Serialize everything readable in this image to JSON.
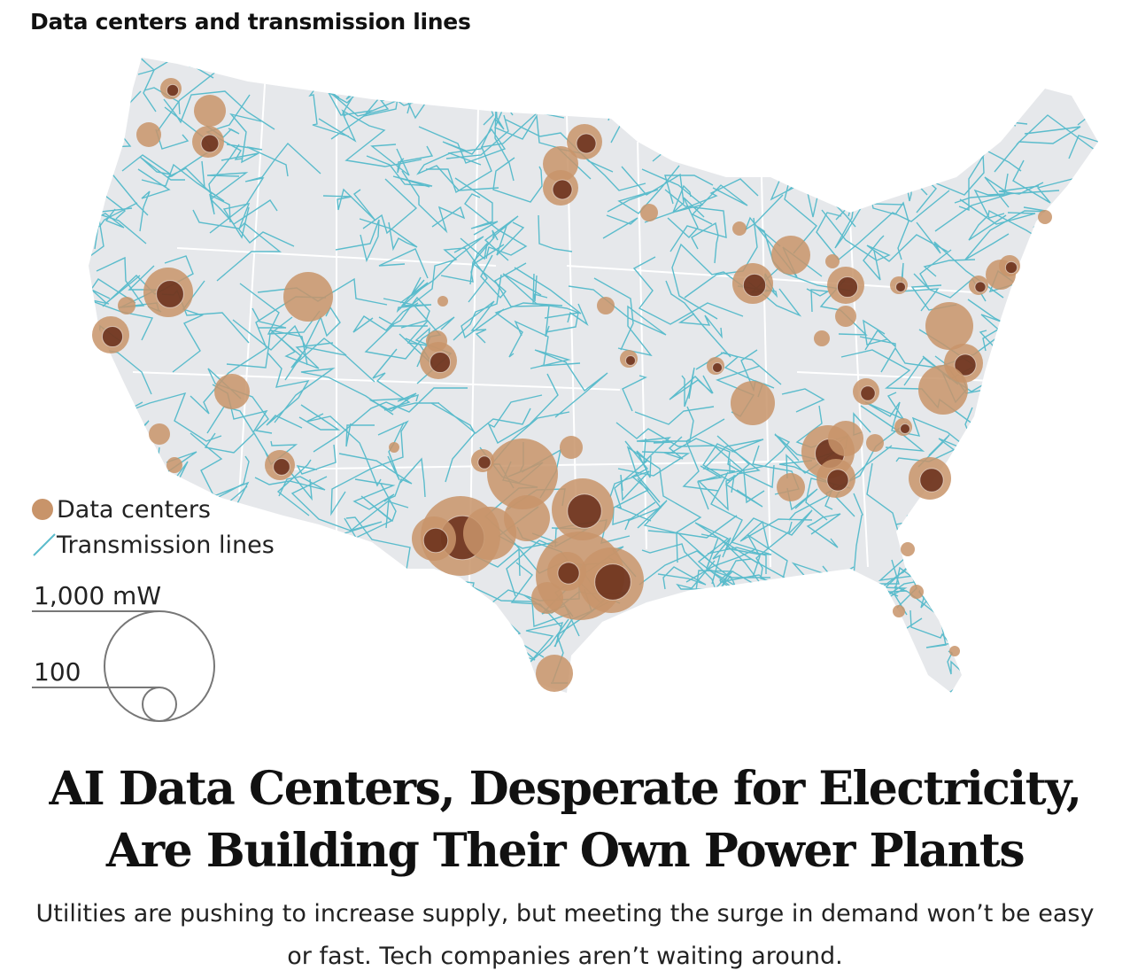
{
  "chart_title": "Data centers and transmission lines",
  "legend": {
    "data_centers": "Data centers",
    "transmission_lines": "Transmission lines",
    "scale_large": "1,000 mW",
    "scale_small": "100"
  },
  "colors": {
    "data_center": "#c8946a",
    "data_center_dark": "#5a1e0c",
    "transmission": "#5bbccc",
    "land": "#e6e8eb"
  },
  "headline": "AI Data Centers, Desperate for Electricity, Are Building Their Own Power Plants",
  "dek": "Utilities are pushing to increase supply, but meeting the surge in demand won’t be easy or fast. Tech companies aren’t waiting around."
}
